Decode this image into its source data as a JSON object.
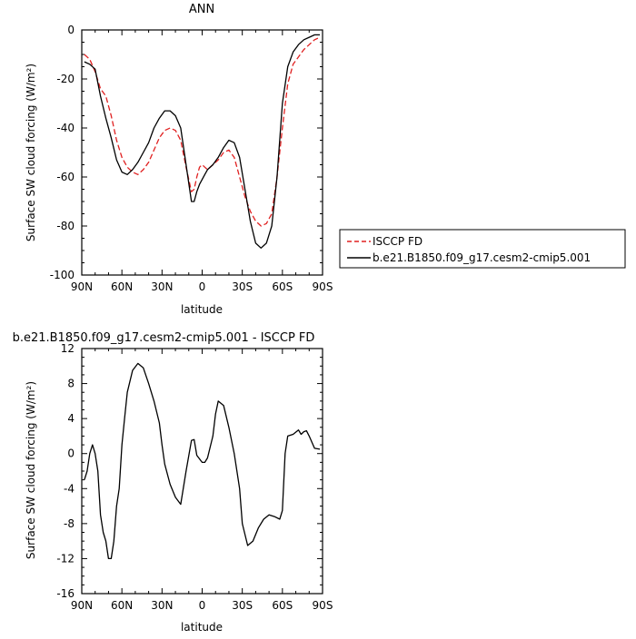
{
  "chart_data": [
    {
      "type": "line",
      "title": "ANN",
      "xlabel": "latitude",
      "ylabel": "Surface SW cloud forcing (W/m²)",
      "xlim": [
        90,
        -90
      ],
      "ylim": [
        -100,
        0
      ],
      "x_ticks": [
        {
          "value": 90,
          "label": "90N"
        },
        {
          "value": 60,
          "label": "60N"
        },
        {
          "value": 30,
          "label": "30N"
        },
        {
          "value": 0,
          "label": "0"
        },
        {
          "value": -30,
          "label": "30S"
        },
        {
          "value": -60,
          "label": "60S"
        },
        {
          "value": -90,
          "label": "90S"
        }
      ],
      "y_ticks": [
        0,
        -20,
        -40,
        -60,
        -80,
        -100
      ],
      "legend": {
        "placement": "right"
      },
      "series": [
        {
          "name": "ISCCP FD",
          "color": "#e02020",
          "dash": "dashed",
          "x": [
            88,
            84,
            80,
            76,
            72,
            68,
            64,
            60,
            56,
            52,
            48,
            44,
            40,
            36,
            32,
            28,
            24,
            20,
            16,
            12,
            8,
            6,
            4,
            2,
            0,
            -2,
            -4,
            -8,
            -12,
            -16,
            -20,
            -24,
            -28,
            -32,
            -36,
            -40,
            -44,
            -48,
            -52,
            -56,
            -60,
            -64,
            -68,
            -72,
            -76,
            -80,
            -84,
            -88
          ],
          "y": [
            -10,
            -12,
            -17,
            -24,
            -27,
            -35,
            -45,
            -52,
            -56,
            -58,
            -59,
            -57,
            -54,
            -49,
            -44,
            -41,
            -40,
            -41,
            -45,
            -56,
            -66,
            -65,
            -60,
            -56,
            -55,
            -56,
            -57,
            -55,
            -53,
            -50,
            -49,
            -52,
            -60,
            -68,
            -74,
            -78,
            -80,
            -79,
            -75,
            -60,
            -40,
            -22,
            -14,
            -11,
            -8,
            -6,
            -4,
            -3
          ]
        },
        {
          "name": "b.e21.B1850.f09_g17.cesm2-cmip5.001",
          "color": "#000000",
          "dash": "solid",
          "x": [
            88,
            84,
            80,
            76,
            72,
            68,
            64,
            60,
            56,
            52,
            48,
            44,
            40,
            36,
            32,
            28,
            24,
            20,
            16,
            12,
            8,
            6,
            4,
            2,
            0,
            -2,
            -4,
            -8,
            -12,
            -16,
            -20,
            -24,
            -28,
            -32,
            -36,
            -40,
            -44,
            -48,
            -52,
            -56,
            -60,
            -64,
            -68,
            -72,
            -76,
            -80,
            -84,
            -88
          ],
          "y": [
            -13,
            -14,
            -16,
            -27,
            -36,
            -44,
            -53,
            -58,
            -59,
            -57,
            -54,
            -50,
            -46,
            -40,
            -36,
            -33,
            -33,
            -35,
            -40,
            -55,
            -70,
            -70,
            -66,
            -63,
            -61,
            -59,
            -57,
            -55,
            -52,
            -48,
            -45,
            -46,
            -52,
            -65,
            -78,
            -87,
            -89,
            -87,
            -80,
            -60,
            -30,
            -15,
            -9,
            -6,
            -4,
            -3,
            -2,
            -2
          ]
        }
      ]
    },
    {
      "type": "line",
      "title": "b.e21.B1850.f09_g17.cesm2-cmip5.001 - ISCCP FD",
      "xlabel": "latitude",
      "ylabel": "Surface SW cloud forcing (W/m²)",
      "xlim": [
        90,
        -90
      ],
      "ylim": [
        -16,
        12
      ],
      "x_ticks": [
        {
          "value": 90,
          "label": "90N"
        },
        {
          "value": 60,
          "label": "60N"
        },
        {
          "value": 30,
          "label": "30N"
        },
        {
          "value": 0,
          "label": "0"
        },
        {
          "value": -30,
          "label": "30S"
        },
        {
          "value": -60,
          "label": "60S"
        },
        {
          "value": -90,
          "label": "90S"
        }
      ],
      "y_ticks": [
        12,
        8,
        4,
        0,
        -4,
        -8,
        -12,
        -16
      ],
      "series": [
        {
          "color": "#000000",
          "dash": "solid",
          "x": [
            88,
            86,
            84,
            82,
            80,
            78,
            76,
            74,
            72,
            70,
            68,
            66,
            64,
            62,
            60,
            58,
            56,
            52,
            48,
            44,
            40,
            36,
            32,
            30,
            28,
            24,
            20,
            16,
            12,
            8,
            6,
            4,
            0,
            -2,
            -4,
            -8,
            -10,
            -12,
            -16,
            -20,
            -24,
            -28,
            -30,
            -34,
            -38,
            -42,
            -46,
            -50,
            -54,
            -58,
            -60,
            -62,
            -64,
            -68,
            -72,
            -74,
            -76,
            -78,
            -80,
            -84,
            -88
          ],
          "y": [
            -3,
            -2,
            0,
            1,
            0,
            -2,
            -7,
            -9,
            -10,
            -12,
            -12,
            -10,
            -6,
            -4,
            1,
            4,
            7,
            9.5,
            10.3,
            9.8,
            8,
            6,
            3.5,
            1,
            -1.2,
            -3.5,
            -5,
            -5.8,
            -2,
            1.5,
            1.6,
            -0.2,
            -1,
            -1,
            -0.5,
            2,
            4.5,
            6,
            5.5,
            3,
            0,
            -4,
            -8,
            -10.5,
            -10,
            -8.5,
            -7.5,
            -7,
            -7.2,
            -7.5,
            -6.5,
            0,
            2,
            2.2,
            2.7,
            2.2,
            2.5,
            2.6,
            2,
            0.6,
            0.5
          ]
        }
      ]
    }
  ]
}
